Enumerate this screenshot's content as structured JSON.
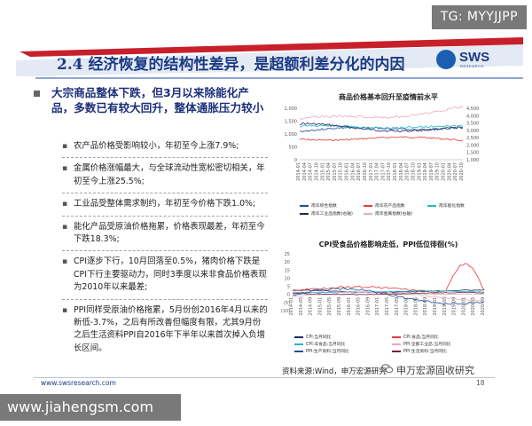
{
  "watermark_top": "TG: MYYJJPP",
  "watermark_bottom": "www.jiahengsm.com",
  "title": "2.4 经济恢复的结构性差异，是超额利差分化的内因",
  "logo": {
    "text": "SWS",
    "sub": "RESEARCH"
  },
  "headline": "大宗商品整体下跌，但3月以来除能化产品，多数已有较大回升，整体通胀压力较小",
  "bullets": [
    {
      "text": "农产品价格受影响较小，年初至今上涨7.9%;"
    },
    {
      "text": "金属价格涨幅最大，与全球流动性宽松密切相关，年初至今上涨25.5%;"
    },
    {
      "text": "工业品受整体需求制约，年初至今价格下跌1.0%;"
    },
    {
      "text": "能化产品受原油价格拖累，价格表现最差，年初至今下跌18.3%;"
    },
    {
      "text": "CPI逐步下行，10月回落至0.5%，猪肉价格下跌是CPI下行主要驱动力，同时3季度以来非食品价格表现为2010年以来最差;"
    },
    {
      "text": "PPI同样受原油价格拖累，5月份创2016年4月以来的新低-3.7%，之后有所改善但幅度有限，尤其9月份之后生活资料PPI自2016年下半年以来首次掉入负增长区间。"
    }
  ],
  "charts": [
    {
      "title": "商品价格基本回升至疫情前水平",
      "left_ticks": [
        "2,000",
        "1,500",
        "1,000",
        "500",
        "0"
      ],
      "right_ticks": [
        "4,500",
        "4,000",
        "3,500",
        "3,000",
        "2,500",
        "2,000",
        "1,500",
        "1,000"
      ],
      "x_ticks": [
        "2014-01",
        "2014-04",
        "2014-07",
        "2014-10",
        "2015-01",
        "2015-04",
        "2015-07",
        "2015-10",
        "2016-01",
        "2016-04",
        "2016-07",
        "2016-10",
        "2017-01",
        "2017-04",
        "2017-07",
        "2017-10",
        "2018-01",
        "2018-04",
        "2018-07",
        "2018-10",
        "2019-01",
        "2019-04",
        "2019-07",
        "2019-10",
        "2020-01",
        "2020-04",
        "2020-07",
        "2020-10"
      ],
      "legend": [
        {
          "label": "南华综合指数",
          "color": "#1f4e9c"
        },
        {
          "label": "南华农产品指数",
          "color": "#e03a3a"
        },
        {
          "label": "南华能化指数",
          "color": "#27b5c9"
        },
        {
          "label": "南华工业品指数(右轴)",
          "color": "#1b2a5e"
        },
        {
          "label": "南华金属指数(右轴)",
          "color": "#f2a7b8"
        }
      ]
    },
    {
      "title": "CPI受食品价格影响走低，PPI低位徘徊(%)",
      "left_ticks": [
        "25",
        "20",
        "15",
        "10",
        "5",
        "0",
        "(5)",
        "(10)"
      ],
      "x_ticks": [
        "2014-01",
        "2014-05",
        "2014-09",
        "2015-01",
        "2015-05",
        "2015-09",
        "2016-01",
        "2016-05",
        "2016-09",
        "2017-01",
        "2017-05",
        "2017-09",
        "2018-01",
        "2018-05",
        "2018-09",
        "2019-01",
        "2019-05",
        "2019-09",
        "2020-01",
        "2020-05",
        "2020-09"
      ],
      "legend": [
        {
          "label": "CPI:当月同比",
          "color": "#1b2a5e"
        },
        {
          "label": "CPI:食品:当月同比",
          "color": "#e03a3a"
        },
        {
          "label": "CPI:非食品:当月同比",
          "color": "#27b5c9"
        },
        {
          "label": "PPI:全部工业品:当月同比",
          "color": "#f2a7b8"
        },
        {
          "label": "PPI:生产资料:当月同比",
          "color": "#1f4e9c"
        },
        {
          "label": "PPI:生活资料:当月同比",
          "color": "#7a1f3a"
        }
      ]
    }
  ],
  "source": "资料来源:Wind，申万宏源研究",
  "wechat": "申万宏源固收研究",
  "footer_url": "www.swsresearch.com",
  "page_number": "18",
  "colors": {
    "title_blue": "#1c3a85",
    "stripe_red": "#c8202b",
    "stripe_blue": "#1c4fa0"
  }
}
